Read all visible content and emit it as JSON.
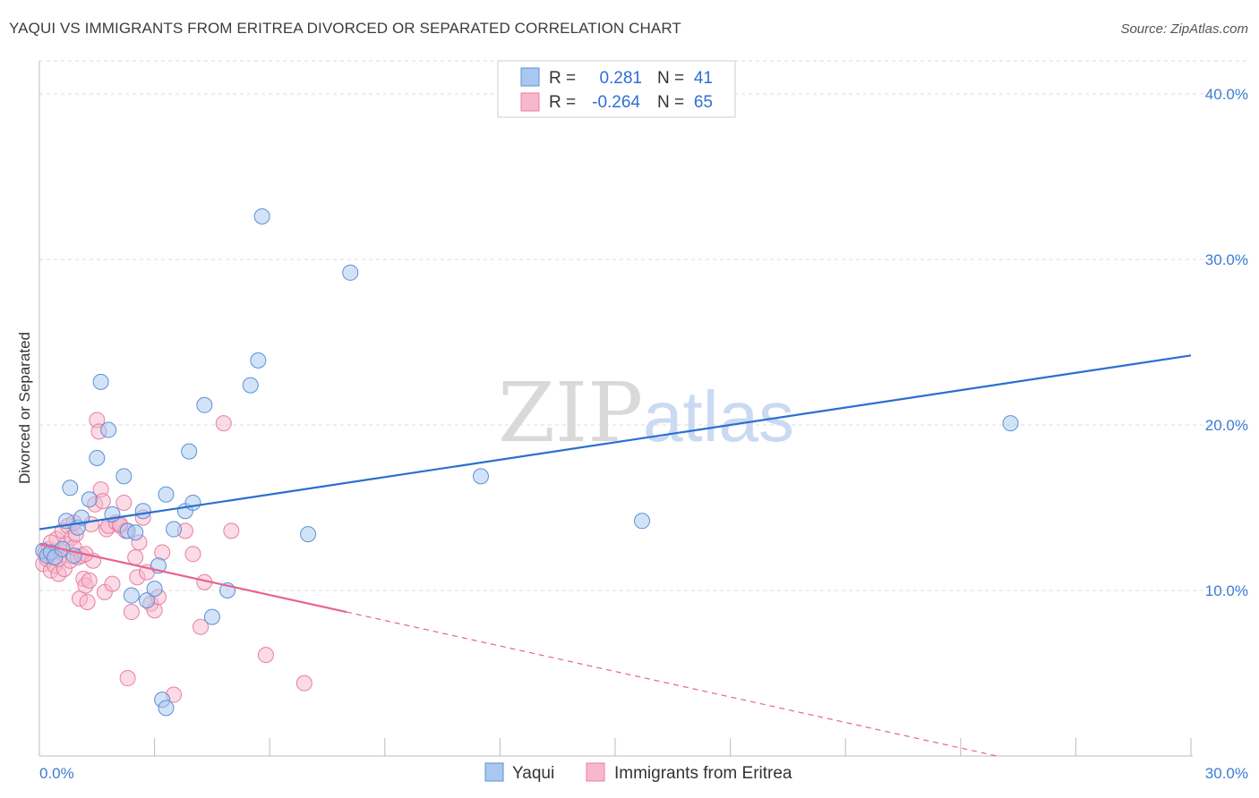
{
  "header": {
    "title": "YAQUI VS IMMIGRANTS FROM ERITREA DIVORCED OR SEPARATED CORRELATION CHART",
    "source": "Source: ZipAtlas.com"
  },
  "watermark": {
    "zip": "ZIP",
    "atlas": "atlas"
  },
  "legend_top": {
    "rows": [
      {
        "r_label": "R =",
        "r_value": "0.281",
        "n_label": "N =",
        "n_value": "41"
      },
      {
        "r_label": "R =",
        "r_value": "-0.264",
        "n_label": "N =",
        "n_value": "65"
      }
    ]
  },
  "colors": {
    "yaqui_fill": "#a8c8f0",
    "yaqui_stroke": "#5b8fd8",
    "yaqui_line": "#2a6fd0",
    "eritrea_fill": "#f8b8cc",
    "eritrea_stroke": "#e77fa0",
    "eritrea_line": "#e8638e",
    "tick_text": "#3b7bd4",
    "grid": "#dddddd"
  },
  "chart_data": {
    "type": "scatter",
    "title": "YAQUI VS IMMIGRANTS FROM ERITREA DIVORCED OR SEPARATED CORRELATION CHART",
    "xlabel": "",
    "ylabel": "Divorced or Separated",
    "xlim": [
      0,
      30
    ],
    "ylim": [
      0,
      42
    ],
    "x_tick_labels": [
      "0.0%",
      "30.0%"
    ],
    "y_ticks": [
      10,
      20,
      30,
      40
    ],
    "y_tick_labels": [
      "10.0%",
      "20.0%",
      "30.0%",
      "40.0%"
    ],
    "grid": true,
    "legend_placement": "top-center",
    "series": [
      {
        "name": "Yaqui",
        "r": 0.281,
        "n": 41,
        "trend": {
          "x": [
            0,
            30
          ],
          "y": [
            13.7,
            24.2
          ]
        },
        "points": [
          [
            0.1,
            12.4
          ],
          [
            0.2,
            12.1
          ],
          [
            0.3,
            12.3
          ],
          [
            0.4,
            12.0
          ],
          [
            0.6,
            12.5
          ],
          [
            0.7,
            14.2
          ],
          [
            0.9,
            12.1
          ],
          [
            1.0,
            13.8
          ],
          [
            1.1,
            14.4
          ],
          [
            1.3,
            15.5
          ],
          [
            1.5,
            18.0
          ],
          [
            1.6,
            22.6
          ],
          [
            1.8,
            19.7
          ],
          [
            1.9,
            14.6
          ],
          [
            2.2,
            16.9
          ],
          [
            2.3,
            13.6
          ],
          [
            2.4,
            9.7
          ],
          [
            2.5,
            13.5
          ],
          [
            2.8,
            9.4
          ],
          [
            2.7,
            14.8
          ],
          [
            3.0,
            10.1
          ],
          [
            3.1,
            11.5
          ],
          [
            3.2,
            3.4
          ],
          [
            3.3,
            2.9
          ],
          [
            3.3,
            15.8
          ],
          [
            3.5,
            13.7
          ],
          [
            3.8,
            14.8
          ],
          [
            3.9,
            18.4
          ],
          [
            4.0,
            15.3
          ],
          [
            4.3,
            21.2
          ],
          [
            4.5,
            8.4
          ],
          [
            4.9,
            10.0
          ],
          [
            5.5,
            22.4
          ],
          [
            5.7,
            23.9
          ],
          [
            5.8,
            32.6
          ],
          [
            7.0,
            13.4
          ],
          [
            8.1,
            29.2
          ],
          [
            11.5,
            16.9
          ],
          [
            15.7,
            14.2
          ],
          [
            25.3,
            20.1
          ],
          [
            0.8,
            16.2
          ]
        ]
      },
      {
        "name": "Immigrants from Eritrea",
        "r": -0.264,
        "n": 65,
        "trend": {
          "x": [
            0,
            8.0
          ],
          "y": [
            12.8,
            8.7
          ]
        },
        "trend_dashed": {
          "x": [
            8.0,
            30
          ],
          "y": [
            8.7,
            -2.6
          ]
        },
        "points": [
          [
            0.1,
            11.6
          ],
          [
            0.15,
            12.3
          ],
          [
            0.2,
            11.9
          ],
          [
            0.25,
            12.5
          ],
          [
            0.3,
            11.2
          ],
          [
            0.35,
            12.0
          ],
          [
            0.4,
            11.5
          ],
          [
            0.45,
            13.1
          ],
          [
            0.5,
            11.0
          ],
          [
            0.55,
            12.4
          ],
          [
            0.6,
            13.6
          ],
          [
            0.65,
            11.3
          ],
          [
            0.7,
            12.8
          ],
          [
            0.75,
            13.9
          ],
          [
            0.8,
            11.8
          ],
          [
            0.85,
            13.2
          ],
          [
            0.9,
            12.6
          ],
          [
            0.95,
            13.4
          ],
          [
            1.0,
            12.0
          ],
          [
            1.05,
            9.5
          ],
          [
            1.1,
            12.1
          ],
          [
            1.15,
            10.7
          ],
          [
            1.2,
            10.3
          ],
          [
            1.25,
            9.3
          ],
          [
            1.3,
            10.6
          ],
          [
            1.35,
            14.0
          ],
          [
            1.4,
            11.8
          ],
          [
            1.45,
            15.2
          ],
          [
            1.5,
            20.3
          ],
          [
            1.55,
            19.6
          ],
          [
            1.6,
            16.1
          ],
          [
            1.65,
            15.4
          ],
          [
            1.7,
            9.9
          ],
          [
            1.75,
            13.7
          ],
          [
            1.8,
            13.9
          ],
          [
            1.9,
            10.4
          ],
          [
            2.0,
            14.1
          ],
          [
            2.1,
            13.9
          ],
          [
            2.2,
            15.3
          ],
          [
            2.25,
            13.6
          ],
          [
            2.3,
            4.7
          ],
          [
            2.4,
            8.7
          ],
          [
            2.5,
            12.0
          ],
          [
            2.55,
            10.8
          ],
          [
            2.6,
            12.9
          ],
          [
            2.7,
            14.4
          ],
          [
            2.8,
            11.1
          ],
          [
            2.9,
            9.2
          ],
          [
            3.0,
            8.8
          ],
          [
            3.1,
            9.6
          ],
          [
            3.2,
            12.3
          ],
          [
            3.5,
            3.7
          ],
          [
            3.8,
            13.6
          ],
          [
            4.0,
            12.2
          ],
          [
            4.2,
            7.8
          ],
          [
            4.3,
            10.5
          ],
          [
            4.8,
            20.1
          ],
          [
            5.0,
            13.6
          ],
          [
            5.9,
            6.1
          ],
          [
            6.9,
            4.4
          ],
          [
            0.3,
            12.9
          ],
          [
            0.5,
            11.9
          ],
          [
            0.9,
            14.1
          ],
          [
            1.2,
            12.2
          ],
          [
            2.1,
            14.0
          ]
        ]
      }
    ]
  },
  "legend_bottom": [
    {
      "label": "Yaqui"
    },
    {
      "label": "Immigrants from Eritrea"
    }
  ]
}
